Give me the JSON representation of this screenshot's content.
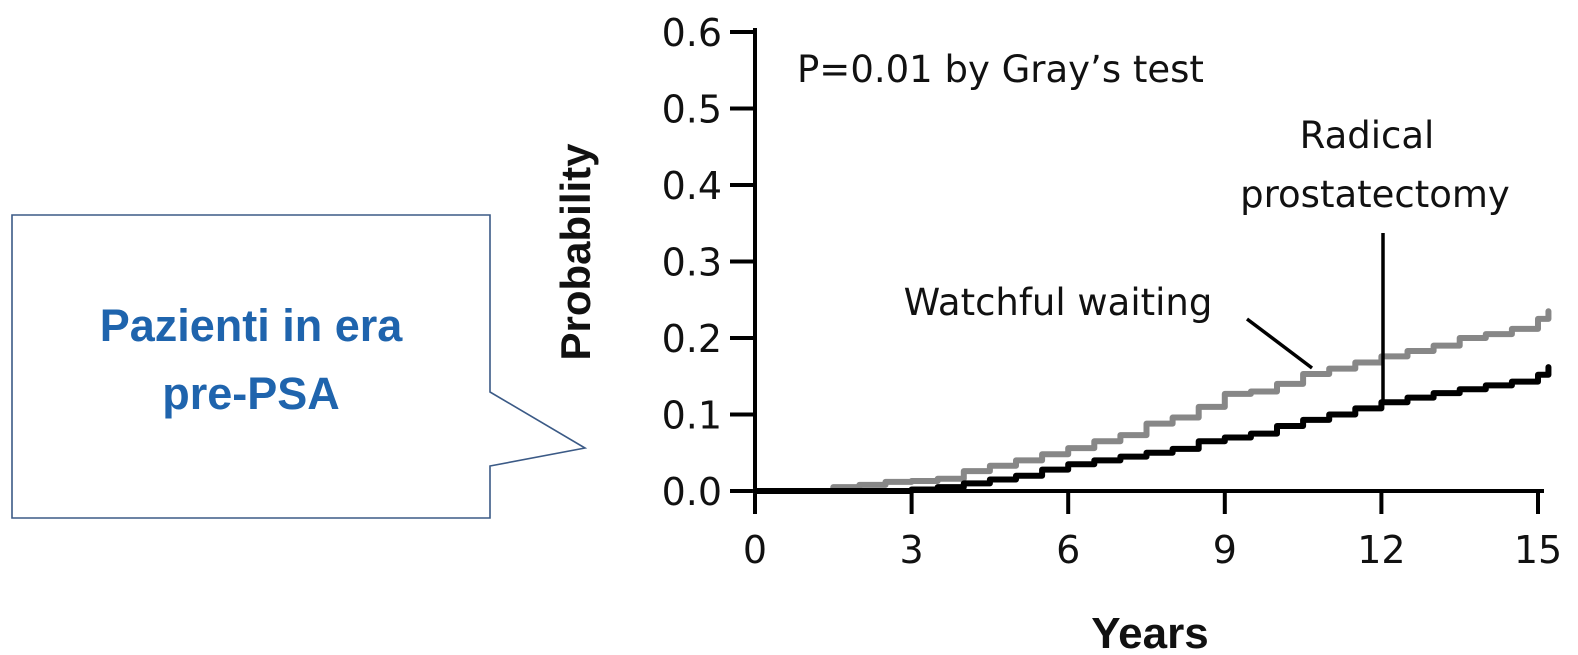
{
  "callout": {
    "line1": "Pazienti in era",
    "line2": "pre-PSA",
    "text_color": "#1f64ad",
    "border_color": "#3b5a86"
  },
  "chart_data": {
    "type": "line",
    "title": "",
    "xlabel": "Years",
    "ylabel": "Probability",
    "xlim": [
      0,
      15.2
    ],
    "ylim": [
      0,
      0.6
    ],
    "x_ticks": [
      "0",
      "3",
      "6",
      "9",
      "12",
      "15"
    ],
    "y_ticks": [
      "0.0",
      "0.1",
      "0.2",
      "0.3",
      "0.4",
      "0.5",
      "0.6"
    ],
    "annotations": {
      "pvalue": "P=0.01 by Gray’s test",
      "radical_line1": "Radical",
      "radical_line2": "prostatectomy",
      "watchful": "Watchful waiting"
    },
    "series": [
      {
        "name": "Watchful waiting",
        "color": "#878787",
        "points": [
          [
            0,
            0
          ],
          [
            1.2,
            0
          ],
          [
            1.5,
            0.005
          ],
          [
            2,
            0.008
          ],
          [
            2.5,
            0.012
          ],
          [
            3,
            0.013
          ],
          [
            3.5,
            0.016
          ],
          [
            4,
            0.026
          ],
          [
            4.5,
            0.033
          ],
          [
            5,
            0.04
          ],
          [
            5.5,
            0.048
          ],
          [
            6,
            0.056
          ],
          [
            6.5,
            0.065
          ],
          [
            7,
            0.073
          ],
          [
            7.5,
            0.088
          ],
          [
            8,
            0.096
          ],
          [
            8.5,
            0.11
          ],
          [
            9,
            0.127
          ],
          [
            9.5,
            0.13
          ],
          [
            10,
            0.14
          ],
          [
            10.5,
            0.153
          ],
          [
            11,
            0.16
          ],
          [
            11.5,
            0.168
          ],
          [
            12,
            0.176
          ],
          [
            12.5,
            0.183
          ],
          [
            13,
            0.19
          ],
          [
            13.5,
            0.2
          ],
          [
            14,
            0.205
          ],
          [
            14.5,
            0.212
          ],
          [
            15,
            0.225
          ],
          [
            15.2,
            0.235
          ]
        ]
      },
      {
        "name": "Radical prostatectomy",
        "color": "#000000",
        "points": [
          [
            0,
            0
          ],
          [
            2.5,
            0
          ],
          [
            3,
            0.002
          ],
          [
            3.5,
            0.005
          ],
          [
            4,
            0.01
          ],
          [
            4.5,
            0.015
          ],
          [
            5,
            0.02
          ],
          [
            5.5,
            0.028
          ],
          [
            6,
            0.035
          ],
          [
            6.5,
            0.04
          ],
          [
            7,
            0.045
          ],
          [
            7.5,
            0.05
          ],
          [
            8,
            0.055
          ],
          [
            8.5,
            0.065
          ],
          [
            9,
            0.07
          ],
          [
            9.5,
            0.075
          ],
          [
            10,
            0.085
          ],
          [
            10.5,
            0.093
          ],
          [
            11,
            0.1
          ],
          [
            11.5,
            0.108
          ],
          [
            12,
            0.116
          ],
          [
            12.5,
            0.122
          ],
          [
            13,
            0.128
          ],
          [
            13.5,
            0.133
          ],
          [
            14,
            0.138
          ],
          [
            14.5,
            0.143
          ],
          [
            15,
            0.152
          ],
          [
            15.2,
            0.162
          ]
        ]
      }
    ]
  }
}
